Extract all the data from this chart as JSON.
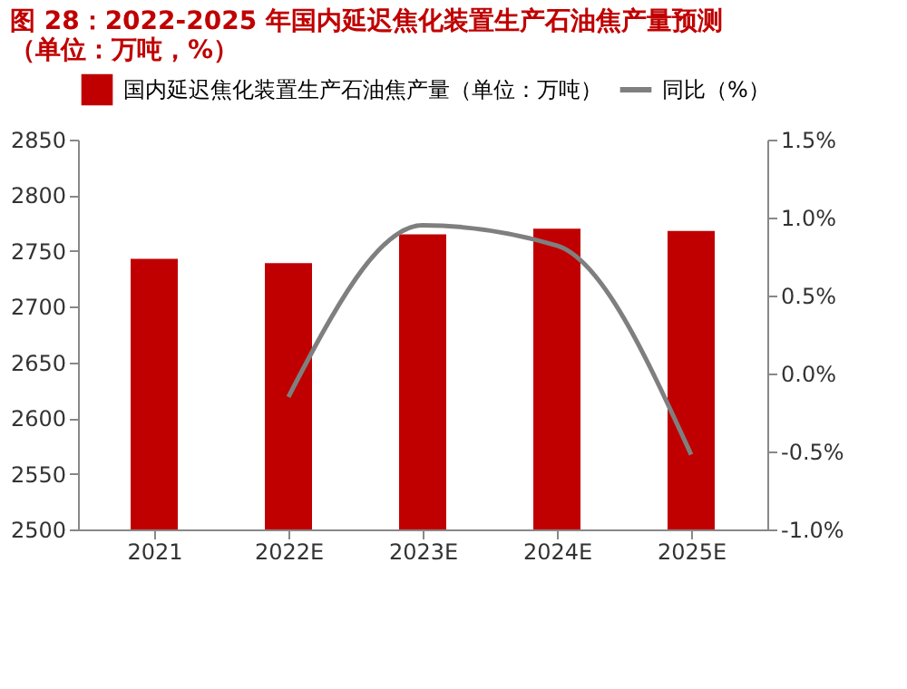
{
  "chart_data": {
    "type": "bar",
    "title": [
      "图 28：2022-2025 年国内延迟焦化装置生产石油焦产量预测",
      "（单位：万吨，%）"
    ],
    "categories": [
      "2021",
      "2022E",
      "2023E",
      "2024E",
      "2025E"
    ],
    "series": [
      {
        "name": "国内延迟焦化装置生产石油焦产量（单位：万吨）",
        "color": "#c00000",
        "values": [
          2743,
          2739,
          2765,
          2770,
          2768
        ]
      },
      {
        "name": "同比（%）",
        "type": "line",
        "axis": "y2",
        "color": "#7f7f7f",
        "values": [
          null,
          -0.15,
          0.95,
          0.82,
          -0.52
        ]
      }
    ],
    "ylim": [
      2500,
      2850
    ],
    "yticks": [
      2500,
      2550,
      2600,
      2650,
      2700,
      2750,
      2800,
      2850
    ],
    "y2lim": [
      -1.0,
      1.5
    ],
    "y2ticks": [
      {
        "value": -1.0,
        "label": "-1.0%"
      },
      {
        "value": -0.5,
        "label": "-0.5%"
      },
      {
        "value": 0.0,
        "label": "0.0%"
      },
      {
        "value": 0.5,
        "label": "0.5%"
      },
      {
        "value": 1.0,
        "label": "1.0%"
      },
      {
        "value": 1.5,
        "label": "1.5%"
      }
    ],
    "grid": false,
    "legend": "top",
    "marker": "none",
    "line_style": "solid"
  }
}
